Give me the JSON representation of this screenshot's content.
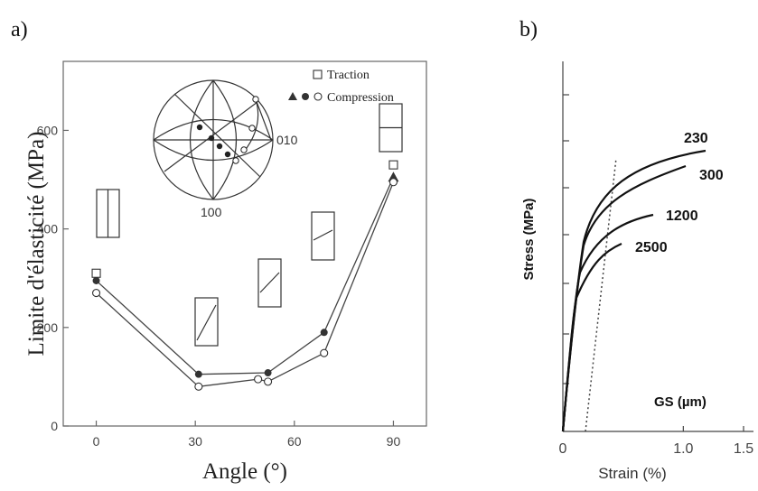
{
  "panel_a_label": "a)",
  "panel_b_label": "b)",
  "chart_data": [
    {
      "type": "line",
      "xlabel": "Angle (°)",
      "ylabel": "Limite d'élasticité (MPa)",
      "xlim": [
        -10,
        100
      ],
      "ylim": [
        0,
        740
      ],
      "xticks": [
        "0",
        "30",
        "60",
        "90"
      ],
      "yticks": [
        "0",
        "200",
        "400",
        "600"
      ],
      "grid": false,
      "legend_position": "top-right",
      "legend": [
        "Traction",
        "Compression"
      ],
      "series": [
        {
          "name": "Traction",
          "marker": "open-square",
          "x": [
            0,
            90
          ],
          "y": [
            310,
            530
          ]
        },
        {
          "name": "Compression",
          "marker": "filled",
          "x": [
            0,
            31,
            52,
            69,
            90
          ],
          "y": [
            295,
            105,
            108,
            190,
            505
          ]
        },
        {
          "name": "Compression",
          "marker": "open-circle",
          "x": [
            0,
            31,
            49,
            52,
            69,
            90
          ],
          "y": [
            270,
            80,
            95,
            90,
            148,
            495
          ]
        }
      ],
      "stereogram_labels": [
        "010",
        "100"
      ]
    },
    {
      "type": "line",
      "xlabel": "Strain (%)",
      "ylabel": "Stress (MPa)",
      "xlim": [
        0,
        1.5
      ],
      "xticks": [
        "0",
        "1.0",
        "1.5"
      ],
      "grid": false,
      "annotation": "GS (µm)",
      "series_labels": [
        "230",
        "300",
        "1200",
        "2500"
      ]
    }
  ]
}
